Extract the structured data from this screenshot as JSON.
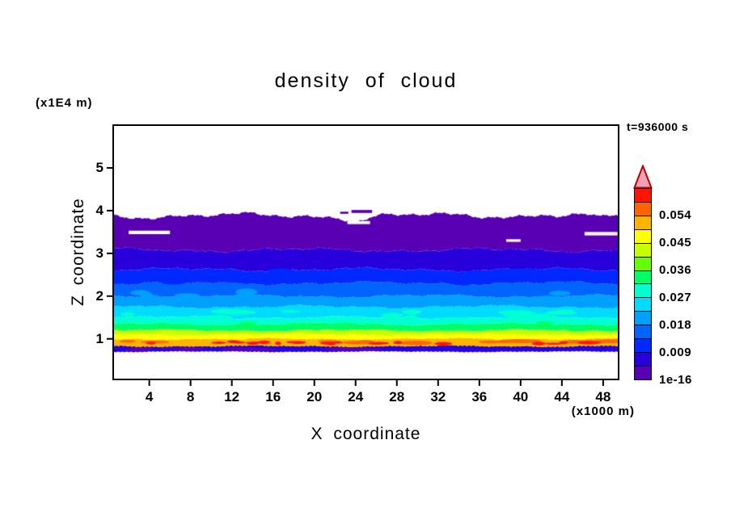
{
  "figure": {
    "background": "#FFFFFF",
    "text_color": "#000000",
    "frame_color": "#000000"
  },
  "chart_data": {
    "type": "filled_contour",
    "title": "density of cloud",
    "xlabel": "X coordinate",
    "x_unit_label": "(x1000 m)",
    "ylabel": "Z coordinate",
    "y_unit_label": "(x1E4 m)",
    "time_label": "t=936000 s",
    "x_range": [
      0.5,
      49.5
    ],
    "y_range": [
      0.05,
      6.0
    ],
    "x_ticks": [
      4,
      8,
      12,
      16,
      20,
      24,
      28,
      32,
      36,
      40,
      44,
      48
    ],
    "y_ticks": [
      1,
      2,
      3,
      4,
      5
    ],
    "grid": false,
    "legend_position": "right-colorbar",
    "colorbar": {
      "labels": [
        "0.054",
        "0.045",
        "0.036",
        "0.027",
        "0.018",
        "0.009",
        "1e-16"
      ],
      "label_values": [
        0.054,
        0.045,
        0.036,
        0.027,
        0.018,
        0.009,
        0
      ],
      "cell_value": 0.0045,
      "min": 0,
      "max": 0.063,
      "colors_bottom_to_top": [
        "#5A00B4",
        "#2800DC",
        "#0028FF",
        "#0064FF",
        "#00A0FF",
        "#00DCFF",
        "#00FFD2",
        "#00FF64",
        "#64FF00",
        "#C8FF00",
        "#FFFF00",
        "#FFB400",
        "#FF6400",
        "#FF1400"
      ],
      "overflow_fill": "#F2A0B4",
      "overflow_stroke": "#C00000"
    },
    "field": {
      "description": "Horizontally layered cloud density field; density decreases with height from a maximum (~0.05-0.06) band near z=0.9 x1E4 m up to trace values (1e-16) near cloud top at z~3.9 x1E4 m; clear air above and below.",
      "seed": 20,
      "cloud_base_z": 0.7,
      "cloud_top_z": 3.88,
      "boundaries_z": [
        0.7,
        0.83,
        1.0,
        1.1,
        1.2,
        1.35,
        1.5,
        1.75,
        2.0,
        2.3,
        2.62,
        3.08,
        3.88
      ],
      "noise_amp": [
        0.012,
        0.02,
        0.025,
        0.025,
        0.03,
        0.035,
        0.04,
        0.045,
        0.045,
        0.05,
        0.055,
        0.06,
        0.085
      ],
      "layer_color_idx": [
        1,
        11,
        10,
        9,
        7,
        6,
        5,
        4,
        3,
        2,
        1,
        0
      ],
      "top_dips": [
        {
          "x": 24.2,
          "depth": 0.1,
          "w": 1.2
        },
        {
          "x": 47.6,
          "depth": 0.06,
          "w": 0.9
        },
        {
          "x": 42.0,
          "depth": -0.05,
          "w": 1.6
        }
      ],
      "white_gaps": [
        {
          "x0": 2.0,
          "x1": 6.0,
          "z": 3.49,
          "h": 0.08
        },
        {
          "x0": 38.6,
          "x1": 40.0,
          "z": 3.3,
          "h": 0.06
        },
        {
          "x0": 46.2,
          "x1": 49.4,
          "z": 3.46,
          "h": 0.08
        },
        {
          "x0": 23.2,
          "x1": 25.4,
          "z": 3.72,
          "h": 0.07
        }
      ],
      "detached_patches": [
        {
          "x0": 23.6,
          "x1": 25.6,
          "z": 3.98,
          "h": 0.07
        },
        {
          "x0": 22.5,
          "x1": 23.3,
          "z": 3.95,
          "h": 0.05
        }
      ],
      "hotspot_color_idx": {
        "red": 13,
        "deep_orange": 12,
        "yellow": 10,
        "turquoise": 6,
        "green": 7,
        "sky": 4,
        "blue": 2,
        "purple": 0
      }
    }
  }
}
